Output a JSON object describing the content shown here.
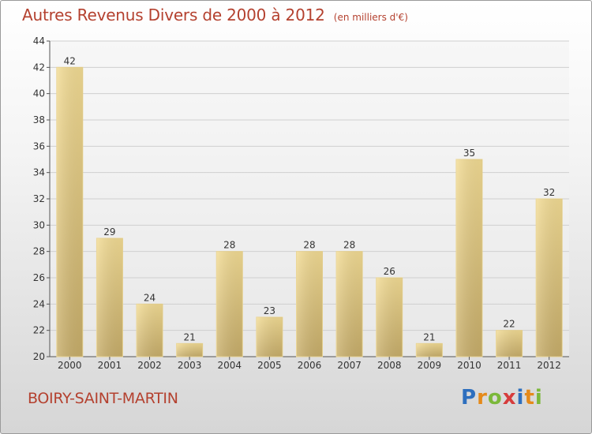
{
  "chart_data": {
    "type": "bar",
    "title": "Autres Revenus Divers de 2000 à 2012",
    "unit_label": "(en milliers d'€)",
    "categories": [
      "2000",
      "2001",
      "2002",
      "2003",
      "2004",
      "2005",
      "2006",
      "2007",
      "2008",
      "2009",
      "2010",
      "2011",
      "2012"
    ],
    "values": [
      42,
      29,
      24,
      21,
      28,
      23,
      28,
      28,
      26,
      21,
      35,
      22,
      32
    ],
    "ylim": [
      20,
      44
    ],
    "yticks": [
      20,
      22,
      24,
      26,
      28,
      30,
      32,
      34,
      36,
      38,
      40,
      42,
      44
    ],
    "grid": true,
    "xlabel": "",
    "ylabel": ""
  },
  "footer": {
    "town": "BOIRY-SAINT-MARTIN",
    "logo_letters": [
      "P",
      "r",
      "o",
      "x",
      "i",
      "t",
      "i"
    ]
  },
  "colors": {
    "title": "#b4412f",
    "bar_top": "#f3dc94",
    "bar_bottom": "#c8ae6a",
    "grid": "#cfcfcf",
    "axis": "#555555"
  }
}
